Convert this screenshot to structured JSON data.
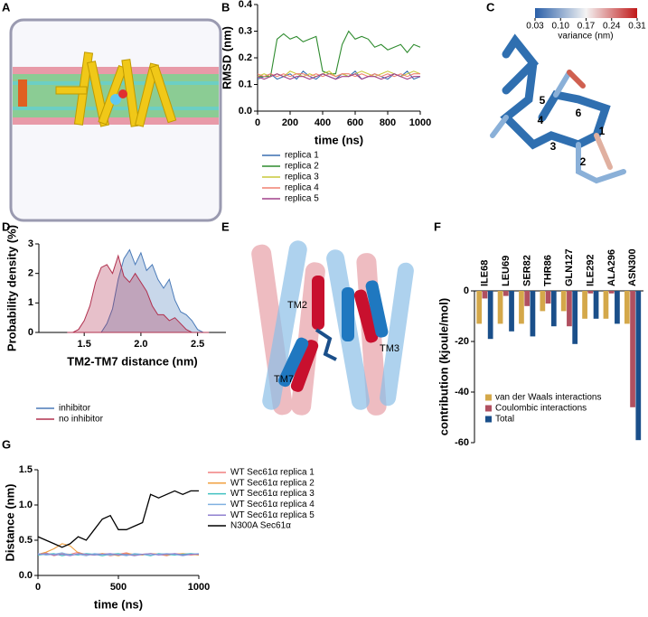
{
  "panel_labels": [
    "A",
    "B",
    "C",
    "D",
    "E",
    "F",
    "G"
  ],
  "colorbar": {
    "label": "variance (nm)",
    "clim": [
      0.03,
      0.31
    ],
    "ticks": [
      0.03,
      {
        "value": 0.1,
        "label": "0.10"
      },
      0.17,
      0.24,
      0.31
    ]
  },
  "structure_labels": [
    "1",
    "2",
    "3",
    "4",
    "5",
    "6"
  ],
  "helix_labels": [
    "TM2",
    "TM3",
    "TM7"
  ],
  "chart_data": [
    {
      "type": "line",
      "xlabel": "time (ns)",
      "ylabel": "RMSD (nm)",
      "x": [
        0,
        40,
        80,
        120,
        160,
        200,
        240,
        280,
        320,
        360,
        400,
        440,
        480,
        520,
        560,
        600,
        640,
        680,
        720,
        760,
        800,
        840,
        880,
        920,
        960,
        1000
      ],
      "xlim": [
        0,
        1000
      ],
      "xticks": [
        0,
        200,
        400,
        600,
        800,
        1000
      ],
      "ylim": [
        0,
        0.4
      ],
      "yticks": [
        {
          "value": 0,
          "label": "0.0"
        },
        0.1,
        0.2,
        0.3,
        0.4
      ],
      "legend": "below",
      "series": [
        {
          "name": "replica 1",
          "color": "#3a6fb0",
          "values": [
            0.12,
            0.13,
            0.14,
            0.12,
            0.13,
            0.14,
            0.12,
            0.15,
            0.13,
            0.12,
            0.14,
            0.13,
            0.12,
            0.14,
            0.13,
            0.15,
            0.12,
            0.13,
            0.14,
            0.13,
            0.12,
            0.14,
            0.13,
            0.15,
            0.12,
            0.13
          ]
        },
        {
          "name": "replica 2",
          "color": "#2e8b2e",
          "values": [
            0.13,
            0.13,
            0.13,
            0.27,
            0.29,
            0.27,
            0.28,
            0.26,
            0.27,
            0.28,
            0.15,
            0.14,
            0.14,
            0.25,
            0.3,
            0.27,
            0.28,
            0.27,
            0.24,
            0.25,
            0.23,
            0.24,
            0.25,
            0.22,
            0.25,
            0.24
          ]
        },
        {
          "name": "replica 3",
          "color": "#c8c83a",
          "values": [
            0.13,
            0.14,
            0.13,
            0.14,
            0.13,
            0.15,
            0.14,
            0.13,
            0.14,
            0.13,
            0.14,
            0.15,
            0.13,
            0.14,
            0.13,
            0.14,
            0.15,
            0.14,
            0.13,
            0.14,
            0.15,
            0.14,
            0.13,
            0.14,
            0.15,
            0.14
          ]
        },
        {
          "name": "replica 4",
          "color": "#f08070",
          "values": [
            0.14,
            0.13,
            0.14,
            0.13,
            0.14,
            0.13,
            0.14,
            0.14,
            0.13,
            0.14,
            0.13,
            0.14,
            0.13,
            0.14,
            0.14,
            0.13,
            0.14,
            0.13,
            0.14,
            0.13,
            0.14,
            0.13,
            0.14,
            0.13,
            0.14,
            0.14
          ]
        },
        {
          "name": "replica 5",
          "color": "#a0408a",
          "values": [
            0.13,
            0.12,
            0.13,
            0.14,
            0.13,
            0.12,
            0.13,
            0.13,
            0.12,
            0.13,
            0.14,
            0.13,
            0.12,
            0.13,
            0.13,
            0.14,
            0.12,
            0.13,
            0.13,
            0.12,
            0.13,
            0.14,
            0.13,
            0.12,
            0.13,
            0.13
          ]
        }
      ]
    },
    {
      "type": "area",
      "xlabel": "TM2-TM7 distance (nm)",
      "ylabel": "Probability density (%)",
      "x": [
        1.35,
        1.4,
        1.45,
        1.5,
        1.55,
        1.6,
        1.65,
        1.7,
        1.75,
        1.8,
        1.85,
        1.9,
        1.95,
        2,
        2.05,
        2.1,
        2.15,
        2.2,
        2.25,
        2.3,
        2.35,
        2.4,
        2.45,
        2.5,
        2.55,
        2.6
      ],
      "xlim": [
        1.1,
        2.75
      ],
      "xticks": [
        1.5,
        {
          "value": 2,
          "label": "2.0"
        },
        2.5
      ],
      "ylim": [
        0,
        3
      ],
      "yticks": [
        0,
        1,
        2,
        3
      ],
      "legend": "below",
      "series": [
        {
          "name": "inhibitor",
          "color": "#4a7ab8",
          "values": [
            0,
            0,
            0,
            0,
            0,
            0,
            0,
            0.3,
            0.8,
            1.8,
            2.5,
            2.8,
            2.3,
            2.7,
            2.1,
            2.3,
            1.8,
            1.5,
            1.8,
            1.1,
            0.7,
            0.6,
            0.4,
            0.1,
            0,
            0
          ]
        },
        {
          "name": "no inhibitor",
          "color": "#b0304e",
          "values": [
            0,
            0,
            0.1,
            0.4,
            0.9,
            1.7,
            2.2,
            2.3,
            2.0,
            2.6,
            1.9,
            1.7,
            2.0,
            1.7,
            1.4,
            0.9,
            0.6,
            0.6,
            0.4,
            0.5,
            0.3,
            0.1,
            0,
            0,
            0,
            0
          ]
        }
      ]
    },
    {
      "type": "bar",
      "ylabel": "contribution (kjoule/mol)",
      "categories": [
        "ILE68",
        "LEU69",
        "SER82",
        "THR86",
        "GLN127",
        "ILE292",
        "ALA296",
        "ASN300"
      ],
      "ylim": [
        -60,
        0
      ],
      "yticks": [
        0,
        -20,
        -40,
        -60
      ],
      "legend": "lower left",
      "series": [
        {
          "name": "van der Waals interactions",
          "color": "#d4a84a",
          "values": [
            -13,
            -13,
            -13,
            -8,
            -8,
            -11,
            -11,
            -13
          ]
        },
        {
          "name": "Coulombic interactions",
          "color": "#b05060",
          "values": [
            -3,
            -2,
            -6,
            -5,
            -14,
            -1,
            -1,
            -46
          ]
        },
        {
          "name": "Total",
          "color": "#1a4f8a",
          "values": [
            -19,
            -16,
            -18,
            -14,
            -21,
            -11,
            -13,
            -59
          ]
        }
      ]
    },
    {
      "type": "line",
      "xlabel": "time (ns)",
      "ylabel": "Distance (nm)",
      "x": [
        0,
        50,
        100,
        150,
        200,
        250,
        300,
        350,
        400,
        450,
        500,
        550,
        600,
        650,
        700,
        750,
        800,
        850,
        900,
        950,
        1000
      ],
      "xlim": [
        0,
        1000
      ],
      "xticks": [
        0,
        500,
        1000
      ],
      "ylim": [
        0,
        1.5
      ],
      "yticks": [
        {
          "value": 0,
          "label": "0.0"
        },
        0.5,
        {
          "value": 1,
          "label": "1.0"
        },
        1.5
      ],
      "legend": "right",
      "series": [
        {
          "name": "WT Sec61α replica 1",
          "color": "#f08080",
          "values": [
            0.3,
            0.32,
            0.28,
            0.31,
            0.3,
            0.33,
            0.29,
            0.3,
            0.31,
            0.28,
            0.3,
            0.32,
            0.29,
            0.3,
            0.31,
            0.3,
            0.28,
            0.31,
            0.3,
            0.29,
            0.3
          ]
        },
        {
          "name": "WT Sec61α replica 2",
          "color": "#f0a040",
          "values": [
            0.3,
            0.33,
            0.38,
            0.45,
            0.42,
            0.32,
            0.3,
            0.29,
            0.31,
            0.3,
            0.28,
            0.31,
            0.3,
            0.29,
            0.31,
            0.3,
            0.29,
            0.3,
            0.31,
            0.3,
            0.29
          ]
        },
        {
          "name": "WT Sec61α replica 3",
          "color": "#40c0c0",
          "values": [
            0.29,
            0.3,
            0.31,
            0.28,
            0.3,
            0.29,
            0.31,
            0.3,
            0.28,
            0.3,
            0.31,
            0.29,
            0.3,
            0.3,
            0.28,
            0.31,
            0.3,
            0.29,
            0.3,
            0.31,
            0.3
          ]
        },
        {
          "name": "WT Sec61α replica 4",
          "color": "#80b0e0",
          "values": [
            0.31,
            0.29,
            0.3,
            0.32,
            0.29,
            0.3,
            0.28,
            0.31,
            0.3,
            0.29,
            0.3,
            0.28,
            0.31,
            0.3,
            0.29,
            0.3,
            0.31,
            0.3,
            0.28,
            0.3,
            0.31
          ]
        },
        {
          "name": "WT Sec61α replica 5",
          "color": "#9080d0",
          "values": [
            0.3,
            0.31,
            0.29,
            0.3,
            0.28,
            0.31,
            0.3,
            0.29,
            0.3,
            0.31,
            0.29,
            0.3,
            0.28,
            0.3,
            0.31,
            0.29,
            0.3,
            0.31,
            0.29,
            0.3,
            0.3
          ]
        },
        {
          "name": "N300A Sec61α",
          "color": "#000000",
          "values": [
            0.55,
            0.5,
            0.45,
            0.4,
            0.45,
            0.55,
            0.5,
            0.65,
            0.8,
            0.85,
            0.65,
            0.65,
            0.7,
            0.75,
            1.15,
            1.1,
            1.15,
            1.2,
            1.15,
            1.2,
            1.2
          ]
        }
      ]
    }
  ]
}
